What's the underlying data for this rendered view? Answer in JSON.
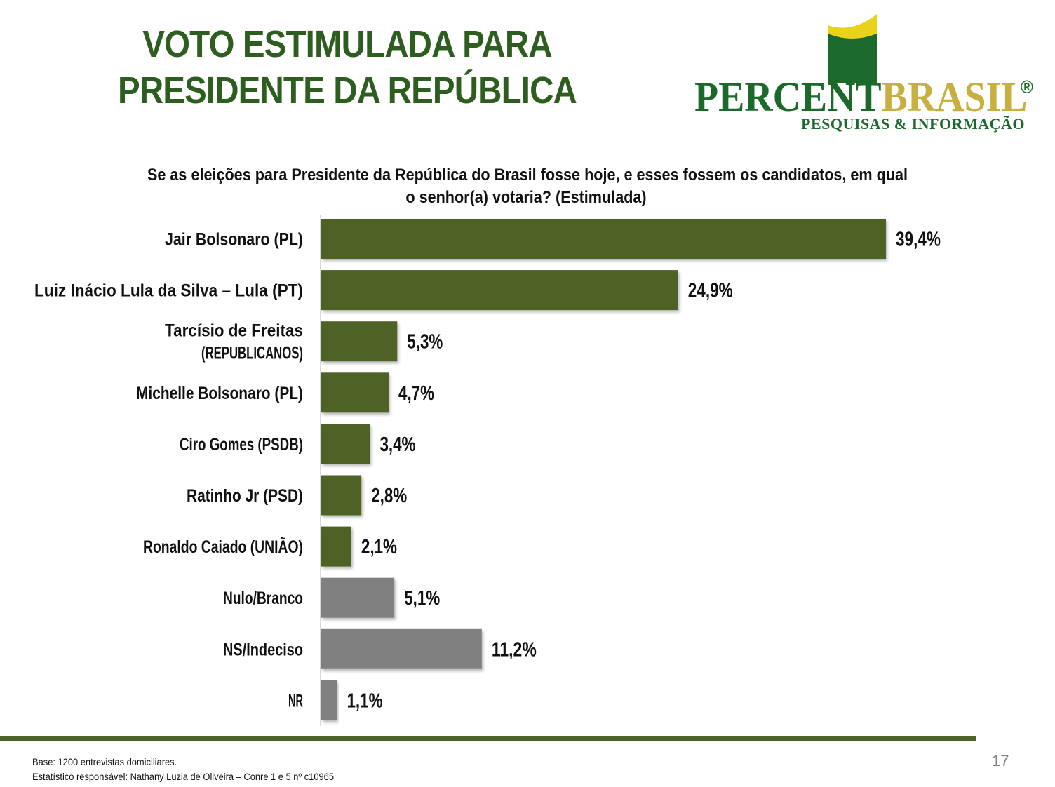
{
  "header": {
    "title_line1": "VOTO ESTIMULADA PARA",
    "title_line2": "PRESIDENTE DA REPÚBLICA"
  },
  "logo": {
    "word_part1": "PERCENT",
    "word_part2": "BRASIL",
    "registered": "®",
    "tagline": "PESQUISAS & INFORMAÇÃO"
  },
  "chart_data": {
    "type": "bar",
    "orientation": "horizontal",
    "title_line1": "Se as eleições para Presidente da República do Brasil fosse hoje, e esses fossem os candidatos, em qual",
    "title_line2": "o senhor(a) votaria? (Estimulada)",
    "categories": [
      [
        "Jair Bolsonaro (PL)"
      ],
      [
        "Luiz Inácio Lula da Silva – Lula (PT)"
      ],
      [
        "Tarcísio de Freitas",
        "(REPUBLICANOS)"
      ],
      [
        "Michelle Bolsonaro (PL)"
      ],
      [
        "Ciro Gomes (PSDB)"
      ],
      [
        "Ratinho Jr (PSD)"
      ],
      [
        "Ronaldo Caiado (UNIÃO)"
      ],
      [
        "Nulo/Branco"
      ],
      [
        "NS/Indeciso"
      ],
      [
        "NR"
      ]
    ],
    "values": [
      39.4,
      24.9,
      5.3,
      4.7,
      3.4,
      2.8,
      2.1,
      5.1,
      11.2,
      1.1
    ],
    "value_labels": [
      "39,4%",
      "24,9%",
      "5,3%",
      "4,7%",
      "3,4%",
      "2,8%",
      "2,1%",
      "5,1%",
      "11,2%",
      "1,1%"
    ],
    "bar_colors": [
      "#4f6228",
      "#4f6228",
      "#4f6228",
      "#4f6228",
      "#4f6228",
      "#4f6228",
      "#4f6228",
      "#808080",
      "#808080",
      "#808080"
    ],
    "xlim": [
      0,
      39.4
    ]
  },
  "footer": {
    "base": "Base: 1200 entrevistas domiciliares.",
    "statistician": "Estatístico responsável: Nathany Luzia de Oliveira – Conre 1 e 5 nº c10965",
    "page_number": "17"
  },
  "colors": {
    "title_green": "#2e5e1f",
    "bar_green": "#4f6228",
    "bar_gray": "#808080",
    "divider": "#4f6228",
    "logo_green": "#1b6a2c",
    "logo_gold": "#c8b040",
    "logo_yellow": "#e8d21a"
  }
}
